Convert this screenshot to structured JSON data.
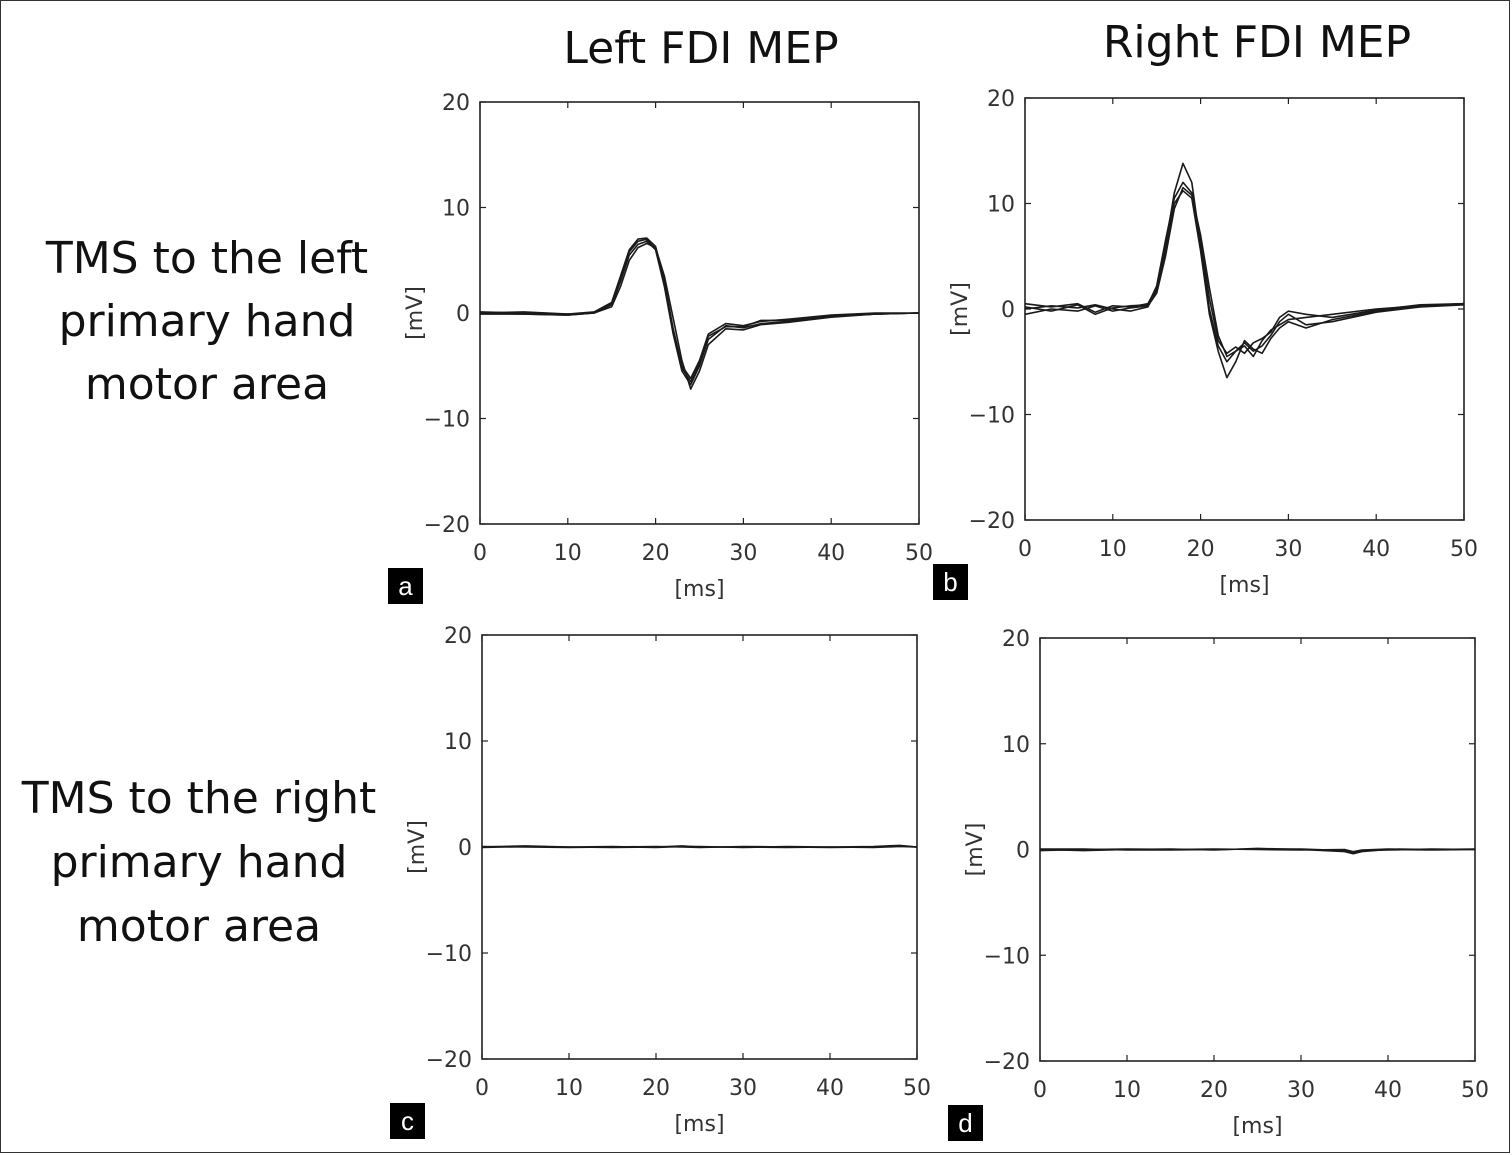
{
  "columns": [
    "Left FDI MEP",
    "Right FDI MEP"
  ],
  "rows": [
    [
      "TMS to the left",
      "primary hand",
      "motor area"
    ],
    [
      "TMS to the right",
      "primary hand",
      "motor area"
    ]
  ],
  "colors": {
    "trace": "#1a1a1a",
    "frame": "#222222",
    "letter_bg": "#000000"
  },
  "chart_data": [
    {
      "type": "line",
      "panel": "a",
      "xlabel": "[ms]",
      "ylabel": "[mV]",
      "xlim": [
        0,
        50
      ],
      "ylim": [
        -20,
        20
      ],
      "xticks": [
        0,
        10,
        20,
        30,
        40,
        50
      ],
      "yticks": [
        -20,
        -10,
        0,
        10,
        20
      ],
      "grid": false,
      "series": [
        {
          "x": [
            0,
            5,
            10,
            13,
            15,
            16,
            17,
            18,
            19,
            20,
            21,
            22,
            23,
            24,
            25,
            26,
            28,
            30,
            32,
            35,
            40,
            45,
            50
          ],
          "values": [
            0,
            -0.1,
            -0.2,
            0,
            0.8,
            3,
            5.5,
            6.5,
            6.8,
            6,
            2.5,
            -2,
            -5.5,
            -6.8,
            -5,
            -2.5,
            -1.2,
            -1.4,
            -1,
            -0.8,
            -0.3,
            -0.1,
            0
          ]
        },
        {
          "x": [
            0,
            5,
            10,
            13,
            15,
            16,
            17,
            18,
            19,
            20,
            21,
            22,
            23,
            24,
            25,
            26,
            28,
            30,
            32,
            35,
            40,
            45,
            50
          ],
          "values": [
            0.1,
            0,
            -0.1,
            0.1,
            1,
            3.5,
            6,
            7,
            7.1,
            6.3,
            3,
            -1.5,
            -5,
            -6.2,
            -4.5,
            -2,
            -1,
            -1.2,
            -0.8,
            -0.6,
            -0.2,
            0,
            0
          ]
        },
        {
          "x": [
            0,
            5,
            10,
            13,
            15,
            16,
            17,
            18,
            19,
            20,
            21,
            22,
            23,
            24,
            25,
            26,
            28,
            30,
            32,
            35,
            40,
            45,
            50
          ],
          "values": [
            -0.1,
            -0.1,
            -0.2,
            0,
            0.6,
            2.5,
            5,
            6.2,
            6.6,
            6.2,
            3.5,
            -0.5,
            -4.5,
            -7.2,
            -5.5,
            -3,
            -1.5,
            -1.6,
            -1.1,
            -0.9,
            -0.4,
            -0.1,
            0
          ]
        },
        {
          "x": [
            0,
            5,
            10,
            13,
            15,
            16,
            17,
            18,
            19,
            20,
            21,
            22,
            23,
            24,
            25,
            26,
            28,
            30,
            32,
            35,
            40,
            45,
            50
          ],
          "values": [
            0,
            0.1,
            -0.1,
            0,
            0.9,
            3.2,
            5.8,
            6.8,
            7,
            6,
            2.8,
            -1.8,
            -5.2,
            -6.5,
            -4.8,
            -2.2,
            -1.3,
            -1.3,
            -0.7,
            -0.7,
            -0.3,
            -0.1,
            0
          ]
        }
      ]
    },
    {
      "type": "line",
      "panel": "b",
      "xlabel": "[ms]",
      "ylabel": "[mV]",
      "xlim": [
        0,
        50
      ],
      "ylim": [
        -20,
        20
      ],
      "xticks": [
        0,
        10,
        20,
        30,
        40,
        50
      ],
      "yticks": [
        -20,
        -10,
        0,
        10,
        20
      ],
      "grid": false,
      "series": [
        {
          "x": [
            0,
            3,
            6,
            8,
            10,
            12,
            14,
            15,
            16,
            17,
            18,
            19,
            20,
            21,
            22,
            23,
            24,
            25,
            26,
            27,
            28,
            29,
            30,
            32,
            35,
            40,
            45,
            50
          ],
          "values": [
            0.5,
            0.2,
            0.5,
            -0.3,
            0.3,
            0.2,
            0.5,
            2,
            6,
            11,
            13.8,
            12,
            6,
            0,
            -3.5,
            -5,
            -4,
            -3.5,
            -4.5,
            -3,
            -2,
            -1.5,
            -1,
            -0.8,
            -0.5,
            0,
            0.3,
            0.5
          ]
        },
        {
          "x": [
            0,
            3,
            6,
            8,
            10,
            12,
            14,
            15,
            16,
            17,
            18,
            19,
            20,
            21,
            22,
            23,
            24,
            25,
            26,
            27,
            28,
            29,
            30,
            32,
            35,
            40,
            45,
            50
          ],
          "values": [
            -0.5,
            0,
            -0.2,
            0.3,
            -0.2,
            0.1,
            0.3,
            1.5,
            5,
            9.5,
            11.5,
            10.8,
            7,
            2,
            -2.5,
            -4.5,
            -4,
            -3.2,
            -4,
            -3.5,
            -2.5,
            -1.2,
            -0.5,
            -1.5,
            -1.2,
            -0.3,
            0.2,
            0.4
          ]
        },
        {
          "x": [
            0,
            3,
            6,
            8,
            10,
            12,
            14,
            15,
            16,
            17,
            18,
            19,
            20,
            21,
            22,
            23,
            24,
            25,
            26,
            27,
            28,
            29,
            30,
            32,
            35,
            40,
            45,
            50
          ],
          "values": [
            0,
            0.3,
            0.1,
            0.4,
            0,
            -0.2,
            0.2,
            1.8,
            5.5,
            10,
            11.2,
            10.5,
            5.5,
            -0.5,
            -4,
            -6.5,
            -5,
            -3,
            -3.8,
            -4.2,
            -2.8,
            -1.8,
            -1.2,
            -1.8,
            -1,
            -0.2,
            0.3,
            0.5
          ]
        },
        {
          "x": [
            0,
            3,
            6,
            8,
            10,
            12,
            14,
            15,
            16,
            17,
            18,
            19,
            20,
            21,
            22,
            23,
            24,
            25,
            26,
            27,
            28,
            29,
            30,
            32,
            35,
            40,
            45,
            50
          ],
          "values": [
            0.2,
            -0.2,
            0.4,
            -0.5,
            0.1,
            0.3,
            0.4,
            2.2,
            6.5,
            10.5,
            12,
            11,
            6.5,
            1,
            -3,
            -4.2,
            -3.6,
            -4.2,
            -3.2,
            -2.8,
            -2.2,
            -0.8,
            -0.2,
            -0.5,
            -0.8,
            -0.1,
            0.4,
            0.5
          ]
        }
      ]
    },
    {
      "type": "line",
      "panel": "c",
      "xlabel": "[ms]",
      "ylabel": "[mV]",
      "xlim": [
        0,
        50
      ],
      "ylim": [
        -20,
        20
      ],
      "xticks": [
        0,
        10,
        20,
        30,
        40,
        50
      ],
      "yticks": [
        -20,
        -10,
        0,
        10,
        20
      ],
      "grid": false,
      "series": [
        {
          "x": [
            0,
            5,
            10,
            15,
            20,
            23,
            25,
            30,
            35,
            40,
            45,
            48,
            50
          ],
          "values": [
            0,
            0.1,
            0,
            -0.05,
            0,
            0.1,
            0,
            0,
            -0.05,
            0,
            0.05,
            0.15,
            0
          ]
        },
        {
          "x": [
            0,
            5,
            10,
            15,
            20,
            23,
            25,
            30,
            35,
            40,
            45,
            48,
            50
          ],
          "values": [
            0.05,
            0,
            -0.05,
            0,
            0.05,
            0,
            -0.05,
            0.05,
            0,
            -0.05,
            0,
            0.1,
            0
          ]
        },
        {
          "x": [
            0,
            5,
            10,
            15,
            20,
            23,
            25,
            30,
            35,
            40,
            45,
            48,
            50
          ],
          "values": [
            -0.05,
            0.05,
            0,
            0.05,
            -0.05,
            0.05,
            0.05,
            -0.05,
            0.05,
            0,
            -0.05,
            0.05,
            0
          ]
        }
      ]
    },
    {
      "type": "line",
      "panel": "d",
      "xlabel": "[ms]",
      "ylabel": "[mV]",
      "xlim": [
        0,
        50
      ],
      "ylim": [
        -20,
        20
      ],
      "xticks": [
        0,
        10,
        20,
        30,
        40,
        50
      ],
      "yticks": [
        -20,
        -10,
        0,
        10,
        20
      ],
      "grid": false,
      "series": [
        {
          "x": [
            0,
            5,
            10,
            15,
            20,
            25,
            30,
            35,
            36,
            37,
            40,
            45,
            50
          ],
          "values": [
            0,
            -0.1,
            0,
            0.05,
            -0.05,
            0.1,
            0,
            -0.2,
            -0.4,
            -0.2,
            0,
            -0.05,
            0
          ]
        },
        {
          "x": [
            0,
            5,
            10,
            15,
            20,
            25,
            30,
            35,
            36,
            37,
            40,
            45,
            50
          ],
          "values": [
            -0.1,
            0,
            0.05,
            0,
            0.05,
            0,
            -0.05,
            0,
            -0.2,
            -0.05,
            0.05,
            0,
            0.05
          ]
        },
        {
          "x": [
            0,
            5,
            10,
            15,
            20,
            25,
            30,
            35,
            36,
            37,
            40,
            45,
            50
          ],
          "values": [
            0.05,
            0.05,
            -0.05,
            -0.05,
            0,
            0.05,
            0.05,
            -0.1,
            -0.3,
            -0.1,
            -0.05,
            0.05,
            0
          ]
        }
      ]
    }
  ]
}
